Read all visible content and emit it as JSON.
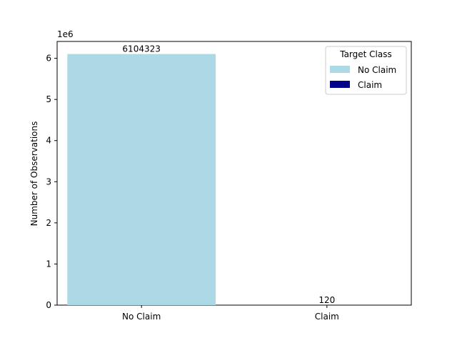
{
  "chart_data": {
    "type": "bar",
    "categories": [
      "No Claim",
      "Claim"
    ],
    "values": [
      6104323,
      120
    ],
    "data_labels": [
      "6104323",
      "120"
    ],
    "colors": [
      "#add8e6",
      "#00008b"
    ],
    "title": "",
    "xlabel": "",
    "ylabel": "Number of Observations",
    "ylim": [
      0,
      6410000
    ],
    "y_ticks": [
      0,
      1000000,
      2000000,
      3000000,
      4000000,
      5000000,
      6000000
    ],
    "y_tick_labels": [
      "0",
      "1",
      "2",
      "3",
      "4",
      "5",
      "6"
    ],
    "y_offset_text": "1e6",
    "grid": false,
    "legend": {
      "title": "Target Class",
      "placement": "top-right",
      "entries": [
        "No Claim",
        "Claim"
      ]
    }
  }
}
